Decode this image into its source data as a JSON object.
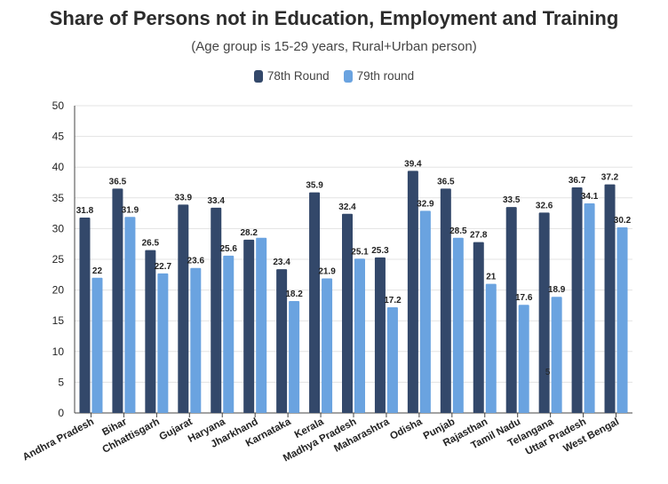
{
  "chart_data": {
    "type": "bar",
    "title": "Share of Persons not in Education, Employment and Training",
    "subtitle": "(Age group is 15-29 years, Rural+Urban person)",
    "categories": [
      "Andhra Pradesh",
      "Bihar",
      "Chhattisgarh",
      "Gujarat",
      "Haryana",
      "Jharkhand",
      "Karnataka",
      "Kerala",
      "Madhya Pradesh",
      "Maharashtra",
      "Odisha",
      "Punjab",
      "Rajasthan",
      "Tamil Nadu",
      "Telangana",
      "Uttar Pradesh",
      "West Bengal"
    ],
    "series": [
      {
        "name": "78th Round",
        "color": "#33486a",
        "values": [
          31.8,
          36.5,
          26.5,
          33.9,
          33.4,
          28.2,
          23.4,
          35.9,
          32.4,
          25.3,
          39.4,
          36.5,
          27.8,
          33.5,
          32.6,
          36.7,
          37.2
        ],
        "labels": [
          "31.8",
          "36.5",
          "26.5",
          "33.9",
          "33.4",
          "28.2",
          "23.4",
          "35.9",
          "32.4",
          "25.3",
          "39.4",
          "36.5",
          "27.8",
          "33.5",
          "32.6",
          "36.7",
          "37.2"
        ]
      },
      {
        "name": "79th round",
        "color": "#6aa3e0",
        "values": [
          22,
          31.9,
          22.7,
          23.6,
          25.6,
          28.5,
          18.2,
          21.9,
          25.1,
          17.2,
          32.9,
          28.5,
          21,
          17.6,
          18.9,
          34.1,
          30.2
        ],
        "labels": [
          "22",
          "31.9",
          "22.7",
          "23.6",
          "25.6",
          "",
          "18.2",
          "21.9",
          "25.1",
          "17.2",
          "32.9",
          "28.5",
          "21",
          "17.6",
          "18.9",
          "34.1",
          "30.2"
        ]
      }
    ],
    "ylim": [
      0,
      50
    ],
    "yticks": [
      "0",
      "5",
      "10",
      "15",
      "20",
      "25",
      "30",
      "35",
      "40",
      "45",
      "50"
    ],
    "grid": true,
    "legend_position": "top-center",
    "stray_text": "5"
  }
}
